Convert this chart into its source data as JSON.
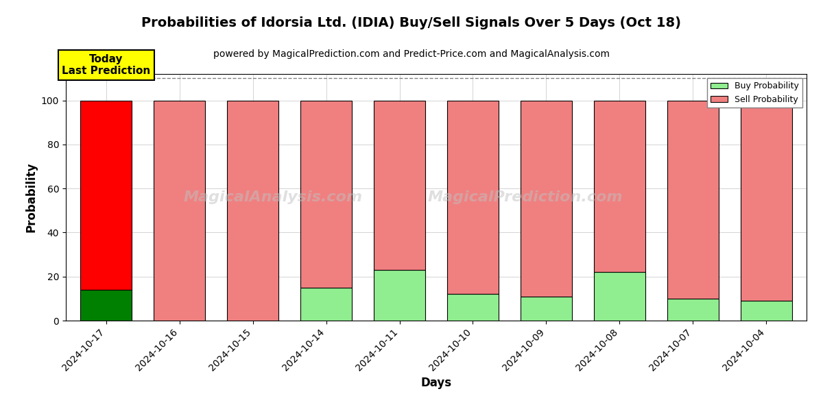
{
  "title": "Probabilities of Idorsia Ltd. (IDIA) Buy/Sell Signals Over 5 Days (Oct 18)",
  "subtitle": "powered by MagicalPrediction.com and Predict-Price.com and MagicalAnalysis.com",
  "xlabel": "Days",
  "ylabel": "Probability",
  "dates": [
    "2024-10-17",
    "2024-10-16",
    "2024-10-15",
    "2024-10-14",
    "2024-10-11",
    "2024-10-10",
    "2024-10-09",
    "2024-10-08",
    "2024-10-07",
    "2024-10-04"
  ],
  "buy_probs": [
    14,
    0,
    0,
    15,
    23,
    12,
    11,
    22,
    10,
    9
  ],
  "sell_probs": [
    86,
    100,
    100,
    85,
    77,
    88,
    89,
    78,
    90,
    91
  ],
  "buy_color_today": "#008000",
  "sell_color_today": "#FF0000",
  "buy_color_past": "#90EE90",
  "sell_color_past": "#F08080",
  "bar_edge_color": "black",
  "bar_edge_width": 0.8,
  "ylim": [
    0,
    112
  ],
  "yticks": [
    0,
    20,
    40,
    60,
    80,
    100
  ],
  "dashed_line_y": 110,
  "watermark1": "MagicalAnalysis.com",
  "watermark2": "MagicalPrediction.com",
  "today_label": "Today\nLast Prediction",
  "today_label_bg": "#FFFF00",
  "legend_buy_label": "Buy Probability",
  "legend_sell_label": "Sell Probability",
  "title_fontsize": 14,
  "subtitle_fontsize": 10,
  "axis_label_fontsize": 12,
  "tick_fontsize": 10,
  "bar_width": 0.7
}
